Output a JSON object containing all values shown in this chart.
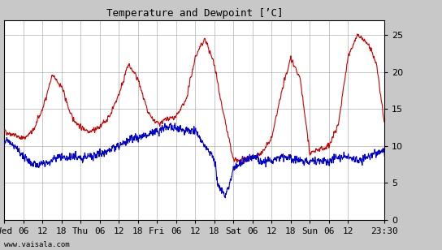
{
  "title": "Temperature and Dewpoint [’C]",
  "yticks": [
    0,
    5,
    10,
    15,
    20,
    25
  ],
  "ylim": [
    0,
    27
  ],
  "xlim": [
    0,
    119.5
  ],
  "xtick_pos": [
    0,
    6,
    12,
    18,
    24,
    30,
    36,
    42,
    48,
    54,
    60,
    66,
    72,
    78,
    84,
    90,
    96,
    102,
    108,
    119.5
  ],
  "xtick_labels": [
    "Wed",
    "06",
    "12",
    "18",
    "Thu",
    "06",
    "12",
    "18",
    "Fri",
    "06",
    "12",
    "18",
    "Sat",
    "06",
    "12",
    "18",
    "Sun",
    "06",
    "12",
    "23:30"
  ],
  "watermark": "www.vaisala.com",
  "temp_color": "#cc0000",
  "dew_color": "#0000cc",
  "fig_bg": "#c8c8c8",
  "plot_bg": "#ffffff",
  "linewidth": 0.8,
  "grid_color": "#b0b0b0",
  "title_fontsize": 9,
  "tick_fontsize": 8
}
